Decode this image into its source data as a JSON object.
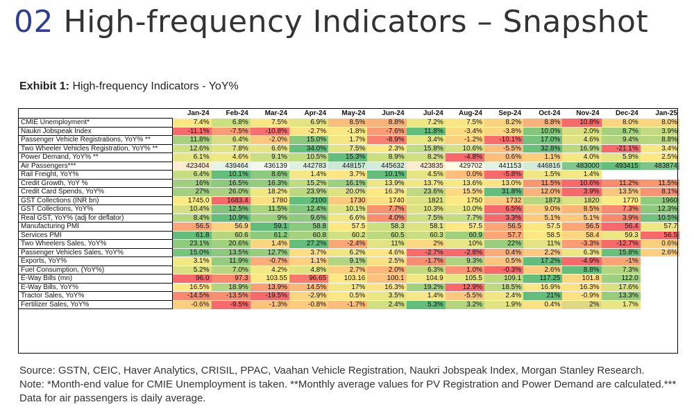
{
  "header": {
    "section_number": "02",
    "title": "High-frequency Indicators – Snapshot"
  },
  "exhibit": {
    "label": "Exhibit 1:",
    "title": "High-frequency Indicators - YoY%"
  },
  "table": {
    "columns": [
      "Jan-24",
      "Feb-24",
      "Mar-24",
      "Apr-24",
      "May-24",
      "Jun-24",
      "Jul-24",
      "Aug-24",
      "Sep-24",
      "Oct-24",
      "Nov-24",
      "Dec-24",
      "Jan-25"
    ],
    "rows": [
      {
        "label": "CMIE Unemployment*",
        "values": [
          "7.4%",
          "6.8%",
          "7.5%",
          "6.9%",
          "8.5%",
          "8.8%",
          "7.2%",
          "7.5%",
          "8.2%",
          "8.8%",
          "10.8%",
          "8.0%",
          "8.0%"
        ],
        "colors": [
          "#fbe884",
          "#c9df80",
          "#f8e684",
          "#e3e381",
          "#f8bf7c",
          "#f8b27a",
          "#ece683",
          "#f8e684",
          "#f9d380",
          "#f8b27a",
          "#f8696b",
          "#f9d781",
          "#f9d781"
        ]
      },
      {
        "label": "Naukri Jobspeak Index",
        "values": [
          "-11.1%",
          "-7.5%",
          "-10.8%",
          "-2.7%",
          "-1.8%",
          "-7.6%",
          "11.8%",
          "-3.4%",
          "-3.8%",
          "10.0%",
          "2.0%",
          "8.7%",
          "3.9%"
        ],
        "colors": [
          "#f8696b",
          "#f99d76",
          "#f86e6c",
          "#fbe284",
          "#fbe884",
          "#f99c76",
          "#63be7b",
          "#fcdb81",
          "#fbd680",
          "#84c77c",
          "#d9e081",
          "#a5d07e",
          "#c2db80"
        ]
      },
      {
        "label": "Passenger Vehicle Registrations, YoY% **",
        "values": [
          "11.8%",
          "6.4%",
          "-2.0%",
          "15.0%",
          "1.7%",
          "-8.9%",
          "3.4%",
          "-1.2%",
          "-10.1%",
          "17.0%",
          "4.6%",
          "9.4%",
          "8.8%"
        ],
        "colors": [
          "#a7d17e",
          "#d8e082",
          "#fcc87e",
          "#89c87d",
          "#f5e583",
          "#f8816f",
          "#e8e583",
          "#fcd27f",
          "#f86e6c",
          "#76c27c",
          "#dfe282",
          "#b2d47f",
          "#b8d67f"
        ]
      },
      {
        "label": "Two Wheeler Vehicles Registration, YoY% **",
        "values": [
          "12.6%",
          "7.8%",
          "6.6%",
          "34.0%",
          "7.5%",
          "2.3%",
          "15.8%",
          "10.6%",
          "-5.5%",
          "32.8%",
          "16.9%",
          "-21.1%",
          "3.4%"
        ],
        "colors": [
          "#cde082",
          "#e2e482",
          "#e6e583",
          "#63be7b",
          "#e3e482",
          "#f9ea84",
          "#bedc81",
          "#d5e182",
          "#fcbf7b",
          "#69c07c",
          "#b9da81",
          "#f8696b",
          "#f6e984"
        ]
      },
      {
        "label": "Power Demand, YoY% **",
        "values": [
          "6.1%",
          "4.6%",
          "9.1%",
          "10.5%",
          "15.3%",
          "8.9%",
          "8.2%",
          "-4.8%",
          "0.6%",
          "1.1%",
          "4.0%",
          "5.9%",
          "2.5%"
        ],
        "colors": [
          "#e4e583",
          "#f0e884",
          "#c9df81",
          "#bddb80",
          "#63be7b",
          "#cbdf81",
          "#d1e082",
          "#f8696b",
          "#fcbf7b",
          "#fdcd7e",
          "#f4e884",
          "#e6e583",
          "#fee883"
        ]
      },
      {
        "label": "Air Passengers***",
        "values": [
          "423404",
          "439464",
          "436139",
          "442783",
          "448157",
          "445632",
          "423835",
          "429702",
          "441153",
          "446816",
          "483000",
          "493415",
          "483874"
        ],
        "colors": [
          "#fdecd2",
          "#e8f3e8",
          "#f3f8ef",
          "#ddf0e1",
          "#cde9d6",
          "#d5ecdc",
          "#fdecd2",
          "#fffce8",
          "#e2f2e4",
          "#d1ead9",
          "#7fc78f",
          "#63be7b",
          "#7cc68d"
        ]
      },
      {
        "label": "Rail Freight, YoY%",
        "values": [
          "6.4%",
          "10.1%",
          "8.6%",
          "1.4%",
          "3.7%",
          "10.1%",
          "4.5%",
          "0.0%",
          "-5.8%",
          "1.5%",
          "1.4%",
          "",
          ""
        ],
        "colors": [
          "#c6de81",
          "#63be7b",
          "#8ccb7e",
          "#f3e884",
          "#fbe683",
          "#63be7b",
          "#e7e583",
          "#fdbd7b",
          "#f8696b",
          "#f0e784",
          "#f3e884",
          "#ffffff",
          "#ffffff"
        ]
      },
      {
        "label": "Credit Growth, YoY %",
        "values": [
          "16%",
          "16.5%",
          "16.3%",
          "15.2%",
          "16.1%",
          "13.9%",
          "13.7%",
          "13.6%",
          "13.0%",
          "11.5%",
          "10.6%",
          "11.2%",
          "11.5%"
        ],
        "colors": [
          "#a0d07e",
          "#8ccb7e",
          "#94cd7e",
          "#bfdc81",
          "#9ccf7e",
          "#ebe783",
          "#f1e884",
          "#f6e984",
          "#fde383",
          "#f9986f",
          "#f8696b",
          "#f88d6e",
          "#f9986f"
        ]
      },
      {
        "label": "Credit Card Spends, YoY%",
        "values": [
          "27%",
          "26.0%",
          "18.2%",
          "23.9%",
          "20.0%",
          "16.3%",
          "23.6%",
          "15.5%",
          "31.8%",
          "12.0%",
          "3.9%",
          "13.5%",
          "8.1%"
        ],
        "colors": [
          "#a2d07f",
          "#abd37f",
          "#eee783",
          "#bcd980",
          "#dee382",
          "#fde884",
          "#bfd980",
          "#fed981",
          "#63be7b",
          "#fbb57a",
          "#f8696b",
          "#fcc77d",
          "#f99373"
        ]
      },
      {
        "label": "GST Collections (INR bn)",
        "values": [
          "1745.0",
          "1683.4",
          "1780",
          "2100",
          "1730",
          "1740",
          "1821",
          "1750",
          "1732",
          "1873",
          "1820",
          "1770",
          "1960"
        ],
        "colors": [
          "#fde984",
          "#f8696b",
          "#fbdf82",
          "#63be7b",
          "#fbc97e",
          "#fbe183",
          "#dce282",
          "#fde984",
          "#fbca7e",
          "#b7d780",
          "#dde282",
          "#fcec85",
          "#8ecb7e"
        ]
      },
      {
        "label": "GST Collections, YoY%",
        "values": [
          "10.4%",
          "12.5%",
          "11.5%",
          "12.4%",
          "10.1%",
          "7.7%",
          "10.3%",
          "10.0%",
          "6.5%",
          "9.0%",
          "8.5%",
          "7.3%",
          "12.3%"
        ],
        "colors": [
          "#d6e082",
          "#7ec47d",
          "#abd47f",
          "#85c77d",
          "#e0e383",
          "#f8946f",
          "#dce282",
          "#e6e583",
          "#f8696b",
          "#fbcb7e",
          "#fab676",
          "#f98970",
          "#8fc97e"
        ]
      },
      {
        "label": "Real GST, YoY% (adj for deflator)",
        "values": [
          "8.4%",
          "10.9%",
          "9%",
          "9.6%",
          "6.6%",
          "4.0%",
          "7.5%",
          "7.7%",
          "3.3%",
          "5.1%",
          "5.1%",
          "3.9%",
          "10.5%"
        ],
        "colors": [
          "#b5d57f",
          "#63be7b",
          "#a0cf7e",
          "#8dca7e",
          "#f0e784",
          "#f88e6e",
          "#ccde81",
          "#c4db81",
          "#f8696b",
          "#fcc97e",
          "#fcc97e",
          "#f8896e",
          "#72c17c"
        ]
      },
      {
        "label": "Manufacturing PMI",
        "values": [
          "56.5",
          "56.9",
          "59.1",
          "58.8",
          "57.5",
          "58.3",
          "58.1",
          "57.5",
          "56.5",
          "57.5",
          "56.5",
          "56.4",
          "57.7"
        ],
        "colors": [
          "#fca677",
          "#fcd480",
          "#63be7b",
          "#8aca7e",
          "#fee884",
          "#cbdf81",
          "#dde282",
          "#fee884",
          "#fca677",
          "#fee884",
          "#fca677",
          "#f8696b",
          "#eee783"
        ]
      },
      {
        "label": "Services PMI",
        "values": [
          "61.8",
          "60.6",
          "61.2",
          "60.8",
          "60.2",
          "60.5",
          "60.3",
          "60.9",
          "57.7",
          "58.5",
          "58.4",
          "59.3",
          "56.5"
        ],
        "colors": [
          "#63be7b",
          "#b5d57f",
          "#8ccb7e",
          "#a7d17e",
          "#d1e082",
          "#bcd980",
          "#c9df81",
          "#a0cf7e",
          "#fca577",
          "#fde884",
          "#fdd780",
          "#ebe783",
          "#f8696b"
        ]
      },
      {
        "label": "Two Wheelers Sales, YoY%",
        "values": [
          "23.1%",
          "20.6%",
          "1.4%",
          "27.2%",
          "-2.4%",
          "11%",
          "2%",
          "10%",
          "22%",
          "11%",
          "-3.3%",
          "-12.7%",
          "0.6%"
        ],
        "colors": [
          "#8fcb7e",
          "#a1d07e",
          "#fcd580",
          "#63be7b",
          "#fba876",
          "#e2e483",
          "#fcd981",
          "#e8e583",
          "#98cd7e",
          "#e2e483",
          "#fb9d74",
          "#f8696b",
          "#fccf7f"
        ]
      },
      {
        "label": "Passenger Vehicles Sales, YoY%",
        "values": [
          "15.0%",
          "13.5%",
          "12.7%",
          "3.7%",
          "6.2%",
          "4.6%",
          "-2.7%",
          "-2.8%",
          "0.4%",
          "2.2%",
          "6.3%",
          "15.8%",
          "2.6%"
        ],
        "colors": [
          "#77c47d",
          "#8dca7e",
          "#99ce7e",
          "#fdde82",
          "#eee783",
          "#fde683",
          "#f86c6b",
          "#f8696b",
          "#fbab77",
          "#fcc97e",
          "#ece683",
          "#6bc17c",
          "#fdcf7f"
        ]
      },
      {
        "label": "Exports, YoY%",
        "values": [
          "3.1%",
          "11.9%",
          "-0.7%",
          "1.1%",
          "9.1%",
          "2.5%",
          "-1.7%",
          "9.3%",
          "0.5%",
          "17.2%",
          "-4.9%",
          "-1%",
          ""
        ],
        "colors": [
          "#f1e784",
          "#94cd7e",
          "#fbae77",
          "#fcd07f",
          "#b2d57f",
          "#f9e183",
          "#f98d70",
          "#afd47f",
          "#fcc47d",
          "#63be7b",
          "#f8696b",
          "#faa375",
          "#ffffff"
        ]
      },
      {
        "label": "Fuel Consumption, (YoY%)",
        "values": [
          "5.2%",
          "7.0%",
          "4.2%",
          "4.8%",
          "2.7%",
          "2.0%",
          "6.3%",
          "1.0%",
          "-0.3%",
          "2.6%",
          "8.8%",
          "7.3%",
          ""
        ],
        "colors": [
          "#dae182",
          "#b8d680",
          "#f2e884",
          "#e1e383",
          "#fdce7f",
          "#fcb57a",
          "#c2d980",
          "#f99373",
          "#f8696b",
          "#fdcb7e",
          "#63be7b",
          "#b2d57f",
          "#ffffff"
        ]
      },
      {
        "label": "E-Way Bills (mn)",
        "values": [
          "96.0",
          "97.3",
          "103.55",
          "96.65",
          "103.16",
          "100.1",
          "104.9",
          "105.5",
          "109.1",
          "117.25",
          "101.8",
          "112.0",
          ""
        ],
        "colors": [
          "#f8696b",
          "#f98a70",
          "#fde884",
          "#f97a6d",
          "#fee884",
          "#fcc17d",
          "#f1e784",
          "#e5e583",
          "#bcd980",
          "#63be7b",
          "#fdd881",
          "#9ccf7e",
          "#ffffff"
        ]
      },
      {
        "label": "E-Way Bills, YoY%",
        "values": [
          "16.5%",
          "18.9%",
          "13.9%",
          "14.5%",
          "17%",
          "16.3%",
          "19.2%",
          "12.9%",
          "18.5%",
          "16.9%",
          "16.3%",
          "17.6%",
          ""
        ],
        "colors": [
          "#fde884",
          "#b0d47f",
          "#fa9e74",
          "#fcb879",
          "#f3e784",
          "#fee283",
          "#a1d07e",
          "#f8696b",
          "#bfd980",
          "#f9e884",
          "#fee283",
          "#d9e082",
          "#ffffff"
        ]
      },
      {
        "label": "Tractor Sales, YoY%",
        "values": [
          "-14.5%",
          "-13.5%",
          "-19.5%",
          "-2.9%",
          "0.5%",
          "3.5%",
          "1.4%",
          "-5.5%",
          "2.4%",
          "21%",
          "-0.9%",
          "13.3%",
          ""
        ],
        "colors": [
          "#f8896e",
          "#f8906f",
          "#f8696b",
          "#fcd680",
          "#fbe884",
          "#eae684",
          "#f6e884",
          "#fbc77d",
          "#f0e784",
          "#63be7b",
          "#fde183",
          "#98cd7e",
          "#ffffff"
        ]
      },
      {
        "label": "Fertilizer Sales, YoY%",
        "values": [
          "-0.6%",
          "-9.5%",
          "-1.3%",
          "-0.8%",
          "-1.7%",
          "2.4%",
          "5.3%",
          "3.2%",
          "1.9%",
          "0.4%",
          "2%",
          "1.7%",
          ""
        ],
        "colors": [
          "#fbcf7f",
          "#f8696b",
          "#fbc47d",
          "#fccb7e",
          "#fbbd7b",
          "#cfdf81",
          "#63be7b",
          "#b3d57f",
          "#e2e483",
          "#fde283",
          "#ded883",
          "#eae684",
          "#ffffff"
        ]
      }
    ]
  },
  "footer": {
    "source": "Source: GSTN, CEIC, Haver Analytics, CRISIL, PPAC, Vaahan Vehicle Registration, Naukri Jobspeak Index, Morgan Stanley Research.",
    "note": "Note: *Month-end value for CMIE Unemployment is taken. **Monthly average values for PV Registration and Power Demand are calculated.*** Data for air passengers is daily average."
  }
}
